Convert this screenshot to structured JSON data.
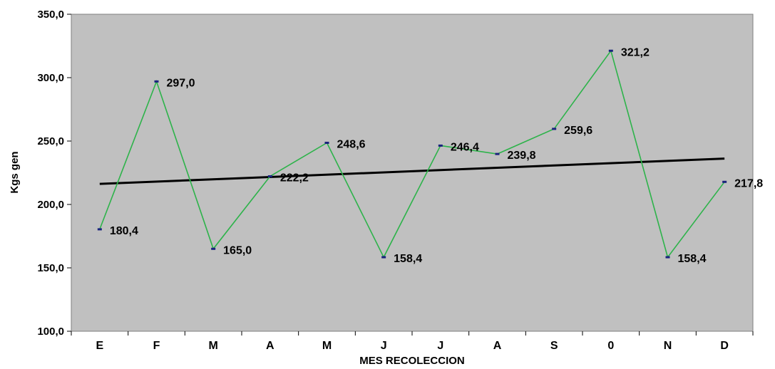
{
  "chart_data": {
    "type": "line",
    "title": "",
    "xlabel": "MES RECOLECCION",
    "ylabel": "Kgs gen",
    "categories": [
      "E",
      "F",
      "M",
      "A",
      "M",
      "J",
      "J",
      "A",
      "S",
      "0",
      "N",
      "D"
    ],
    "series": [
      {
        "values": [
          180.4,
          297.0,
          165.0,
          222.2,
          248.6,
          158.4,
          246.4,
          239.8,
          259.6,
          321.2,
          158.4,
          217.8
        ],
        "labels": [
          "180,4",
          "297,0",
          "165,0",
          "222,2",
          "248,6",
          "158,4",
          "246,4",
          "239,8",
          "259,6",
          "321,2",
          "158,4",
          "217,8"
        ],
        "color": "#2db34a"
      }
    ],
    "trendline": {
      "start": 216.2,
      "end": 236.2,
      "color": "#000000"
    },
    "ylim": [
      100,
      350
    ],
    "yticks": [
      100,
      150,
      200,
      250,
      300,
      350
    ],
    "ytick_labels": [
      "100,0",
      "150,0",
      "200,0",
      "250,0",
      "300,0",
      "350,0"
    ],
    "plot_background": "#c0c0c0",
    "marker_color": "#1a237e",
    "grid": false,
    "legend": "none"
  }
}
